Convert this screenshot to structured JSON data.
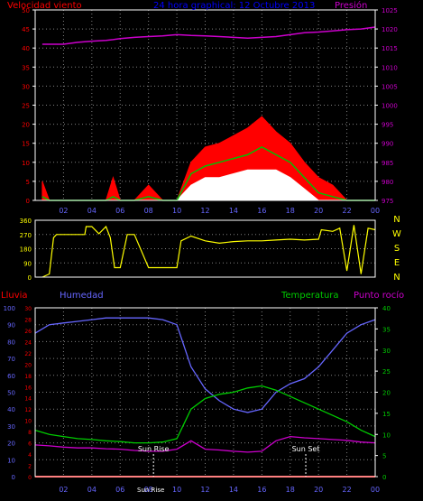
{
  "colors": {
    "background": "#000000",
    "frame": "#ffffff",
    "grid": "#808080",
    "wind_speed": "#ff0000",
    "wind_avg": "#ffffff",
    "wind_trend": "#00c000",
    "pressure": "#cc00cc",
    "direction": "#ffff00",
    "rain": "#ff0000",
    "humidity": "#6666ff",
    "temperature": "#00cc00",
    "dew_point": "#cc00cc",
    "title": "#0000ff",
    "sun_marker": "#ffffff"
  },
  "chart_data": [
    {
      "type": "area",
      "title": "24 hora graphical: 12 Octubre 2013",
      "left_label": "Velocidad viento",
      "right_label": "Presión",
      "x_ticks": [
        "02",
        "04",
        "06",
        "08",
        "10",
        "12",
        "14",
        "16",
        "18",
        "20",
        "22",
        "00"
      ],
      "left_ticks": [
        "0",
        "5",
        "10",
        "15",
        "20",
        "25",
        "30",
        "35",
        "40",
        "45",
        "50"
      ],
      "right_ticks": [
        "975",
        "980",
        "985",
        "990",
        "995",
        "1000",
        "1005",
        "1010",
        "1015",
        "1020",
        "1025"
      ],
      "ylim_left": [
        0,
        50
      ],
      "ylim_right": [
        975,
        1025
      ],
      "hours": [
        0.5,
        1,
        2,
        3,
        4,
        5,
        5.5,
        6,
        7,
        8,
        9,
        10,
        11,
        12,
        13,
        14,
        15,
        16,
        17,
        18,
        19,
        20,
        21,
        22,
        23,
        24
      ],
      "series": [
        {
          "role": "wind_gust",
          "values": [
            5,
            0,
            0,
            0,
            0,
            0,
            6,
            0,
            0,
            4,
            0,
            0,
            10,
            14,
            15,
            17,
            19,
            22,
            18,
            15,
            10,
            6,
            4,
            0,
            0,
            0
          ]
        },
        {
          "role": "wind_average",
          "values": [
            0,
            0,
            0,
            0,
            0,
            0,
            0,
            0,
            0,
            0,
            0,
            0,
            4,
            6,
            6,
            7,
            8,
            8,
            8,
            6,
            3,
            0,
            0,
            0,
            0,
            0
          ]
        },
        {
          "role": "wind_trend",
          "values": [
            1,
            0,
            0,
            0,
            0,
            0,
            1,
            0,
            0,
            1,
            0,
            0,
            7,
            9,
            10,
            11,
            12,
            14,
            12,
            10,
            6,
            2,
            1,
            0,
            0,
            0
          ]
        },
        {
          "role": "pressure",
          "values": [
            1016,
            1016,
            1016,
            1016.5,
            1016.8,
            1017,
            1017.2,
            1017.5,
            1017.8,
            1018,
            1018.2,
            1018.5,
            1018.3,
            1018.2,
            1018,
            1017.8,
            1017.6,
            1017.8,
            1018,
            1018.5,
            1019,
            1019.2,
            1019.5,
            1019.8,
            1020,
            1020.5
          ]
        }
      ]
    },
    {
      "type": "line",
      "right_letters": [
        "N",
        "W",
        "S",
        "E",
        "N"
      ],
      "left_ticks": [
        "0",
        "90",
        "180",
        "270",
        "360"
      ],
      "ylim": [
        0,
        360
      ],
      "hours": [
        0.5,
        1,
        1.3,
        1.5,
        3.5,
        3.6,
        4,
        4.5,
        5,
        5.3,
        5.6,
        6,
        6.5,
        7,
        8,
        9,
        10,
        10.3,
        11,
        12,
        13,
        14,
        15,
        16,
        17,
        18,
        19,
        20,
        20.2,
        21,
        21.5,
        22,
        22.5,
        23,
        23.5,
        24
      ],
      "values": [
        0,
        20,
        250,
        270,
        270,
        320,
        320,
        275,
        320,
        250,
        60,
        60,
        270,
        270,
        60,
        60,
        60,
        230,
        260,
        230,
        215,
        225,
        230,
        230,
        235,
        240,
        235,
        240,
        300,
        290,
        310,
        40,
        330,
        20,
        310,
        300
      ]
    },
    {
      "type": "line",
      "left_label_rain": "Lluvia",
      "left_label_humidity": "Humedad",
      "right_label_temp": "Temperatura",
      "right_label_dew": "Punto rocío",
      "x_ticks": [
        "02",
        "04",
        "06",
        "08",
        "10",
        "12",
        "14",
        "16",
        "18",
        "20",
        "22",
        "00"
      ],
      "humidity_ticks": [
        "0",
        "10",
        "20",
        "30",
        "40",
        "50",
        "60",
        "70",
        "80",
        "90",
        "100"
      ],
      "rain_ticks": [
        "0",
        "2",
        "4",
        "6",
        "8",
        "10",
        "12",
        "14",
        "16",
        "18",
        "20",
        "22",
        "24",
        "26",
        "28",
        "30"
      ],
      "temp_ticks": [
        "0",
        "5",
        "10",
        "15",
        "20",
        "25",
        "30",
        "35",
        "40"
      ],
      "ylim_humidity": [
        0,
        100
      ],
      "ylim_temp": [
        0,
        40
      ],
      "hours": [
        0,
        1,
        2,
        3,
        4,
        5,
        6,
        7,
        8,
        9,
        10,
        11,
        12,
        13,
        14,
        15,
        16,
        17,
        18,
        19,
        20,
        21,
        22,
        23,
        24
      ],
      "series": [
        {
          "role": "humidity",
          "values": [
            85,
            90,
            91,
            92,
            93,
            94,
            94,
            94,
            94,
            93,
            90,
            65,
            52,
            45,
            40,
            38,
            40,
            50,
            55,
            58,
            65,
            75,
            85,
            90,
            93
          ]
        },
        {
          "role": "temperature",
          "values": [
            11,
            10,
            9.5,
            9,
            8.8,
            8.5,
            8.3,
            8,
            8,
            8.2,
            9,
            16,
            18.5,
            19.5,
            20,
            21,
            21.5,
            20.5,
            19,
            17.5,
            16,
            14.5,
            13,
            11,
            9.5
          ]
        },
        {
          "role": "dew_point",
          "values": [
            7.5,
            7.3,
            7,
            6.8,
            6.8,
            6.6,
            6.5,
            6.2,
            6,
            6,
            6.5,
            8.5,
            6.5,
            6.3,
            6,
            5.8,
            6,
            8.5,
            9.5,
            9.2,
            9,
            8.8,
            8.6,
            8.2,
            8
          ]
        },
        {
          "role": "rain",
          "values": [
            0,
            0,
            0,
            0,
            0,
            0,
            0,
            0,
            0,
            0,
            0,
            0,
            0,
            0,
            0,
            0,
            0,
            0,
            0,
            0,
            0,
            0,
            0,
            0,
            0
          ]
        }
      ],
      "annotations": [
        {
          "text": "Sun Rise",
          "hour": 8.35
        },
        {
          "text": "Sun Set",
          "hour": 19.1
        }
      ],
      "bottom_labels": {
        "sun_rise_label": "Sun Rise",
        "bottom_08": "08"
      }
    }
  ]
}
